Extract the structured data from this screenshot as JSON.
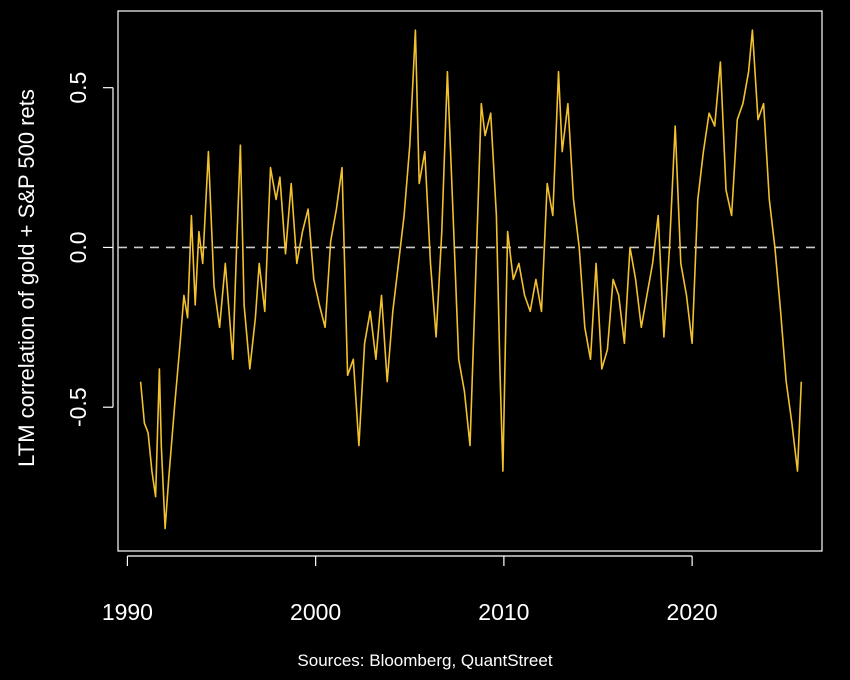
{
  "chart_data": {
    "type": "line",
    "ylabel": "LTM correlation of gold + S&P 500 rets",
    "caption": "Sources: Bloomberg, QuantStreet",
    "xlim": [
      1989.5,
      2026.9
    ],
    "ylim": [
      -0.95,
      0.74
    ],
    "x_ticks": [
      1990,
      2000,
      2010,
      2020
    ],
    "x_tick_labels": [
      "1990",
      "2000",
      "2010",
      "2020"
    ],
    "y_ticks": [
      -0.5,
      0.0,
      0.5
    ],
    "y_tick_labels": [
      "-0.5",
      "0.0",
      "0.5"
    ],
    "reference_line": 0.0,
    "grid": false,
    "colors": {
      "background": "#000000",
      "line": "#f2c12e",
      "axis": "#ffffff",
      "reference": "#cccccc"
    },
    "series": [
      {
        "x": [
          1990.7,
          1990.9,
          1991.1,
          1991.3,
          1991.5,
          1991.7,
          1991.8,
          1992.0,
          1992.2,
          1992.5,
          1992.8,
          1993.0,
          1993.2,
          1993.4,
          1993.6,
          1993.8,
          1994.0,
          1994.3,
          1994.6,
          1994.9,
          1995.2,
          1995.6,
          1995.8,
          1996.0,
          1996.2,
          1996.5,
          1996.8,
          1997.0,
          1997.3,
          1997.6,
          1997.9,
          1998.1,
          1998.4,
          1998.7,
          1999.0,
          1999.3,
          1999.6,
          1999.9,
          2000.2,
          2000.5,
          2000.8,
          2001.1,
          2001.4,
          2001.7,
          2002.0,
          2002.3,
          2002.6,
          2002.9,
          2003.2,
          2003.5,
          2003.8,
          2004.1,
          2004.4,
          2004.7,
          2005.0,
          2005.3,
          2005.5,
          2005.8,
          2006.1,
          2006.4,
          2006.7,
          2007.0,
          2007.3,
          2007.6,
          2007.9,
          2008.2,
          2008.5,
          2008.8,
          2009.0,
          2009.3,
          2009.6,
          2009.8,
          2009.95,
          2010.2,
          2010.5,
          2010.8,
          2011.1,
          2011.4,
          2011.7,
          2012.0,
          2012.3,
          2012.6,
          2012.9,
          2013.1,
          2013.4,
          2013.7,
          2014.0,
          2014.3,
          2014.6,
          2014.9,
          2015.2,
          2015.5,
          2015.8,
          2016.1,
          2016.4,
          2016.7,
          2017.0,
          2017.3,
          2017.6,
          2017.9,
          2018.2,
          2018.5,
          2018.8,
          2019.1,
          2019.4,
          2019.7,
          2020.0,
          2020.3,
          2020.6,
          2020.9,
          2021.2,
          2021.5,
          2021.8,
          2022.1,
          2022.4,
          2022.7,
          2023.0,
          2023.2,
          2023.5,
          2023.8,
          2024.1,
          2024.4,
          2024.7,
          2025.0,
          2025.3,
          2025.6,
          2025.8
        ],
        "y": [
          -0.42,
          -0.55,
          -0.58,
          -0.7,
          -0.78,
          -0.38,
          -0.62,
          -0.88,
          -0.72,
          -0.5,
          -0.3,
          -0.15,
          -0.22,
          0.1,
          -0.18,
          0.05,
          -0.05,
          0.3,
          -0.12,
          -0.25,
          -0.05,
          -0.35,
          0.0,
          0.32,
          -0.18,
          -0.38,
          -0.22,
          -0.05,
          -0.2,
          0.25,
          0.15,
          0.22,
          -0.02,
          0.2,
          -0.05,
          0.05,
          0.12,
          -0.1,
          -0.18,
          -0.25,
          0.02,
          0.12,
          0.25,
          -0.4,
          -0.35,
          -0.62,
          -0.3,
          -0.2,
          -0.35,
          -0.15,
          -0.42,
          -0.2,
          -0.05,
          0.1,
          0.32,
          0.68,
          0.2,
          0.3,
          -0.05,
          -0.28,
          0.05,
          0.55,
          0.1,
          -0.35,
          -0.45,
          -0.62,
          -0.1,
          0.45,
          0.35,
          0.42,
          0.1,
          -0.4,
          -0.7,
          0.05,
          -0.1,
          -0.05,
          -0.15,
          -0.2,
          -0.1,
          -0.2,
          0.2,
          0.1,
          0.55,
          0.3,
          0.45,
          0.15,
          0.0,
          -0.25,
          -0.35,
          -0.05,
          -0.38,
          -0.32,
          -0.1,
          -0.15,
          -0.3,
          0.0,
          -0.1,
          -0.25,
          -0.15,
          -0.05,
          0.1,
          -0.28,
          0.0,
          0.38,
          -0.05,
          -0.15,
          -0.3,
          0.15,
          0.3,
          0.42,
          0.38,
          0.58,
          0.18,
          0.1,
          0.4,
          0.45,
          0.55,
          0.68,
          0.4,
          0.45,
          0.15,
          0.0,
          -0.2,
          -0.42,
          -0.55,
          -0.7,
          -0.42
        ]
      }
    ]
  }
}
